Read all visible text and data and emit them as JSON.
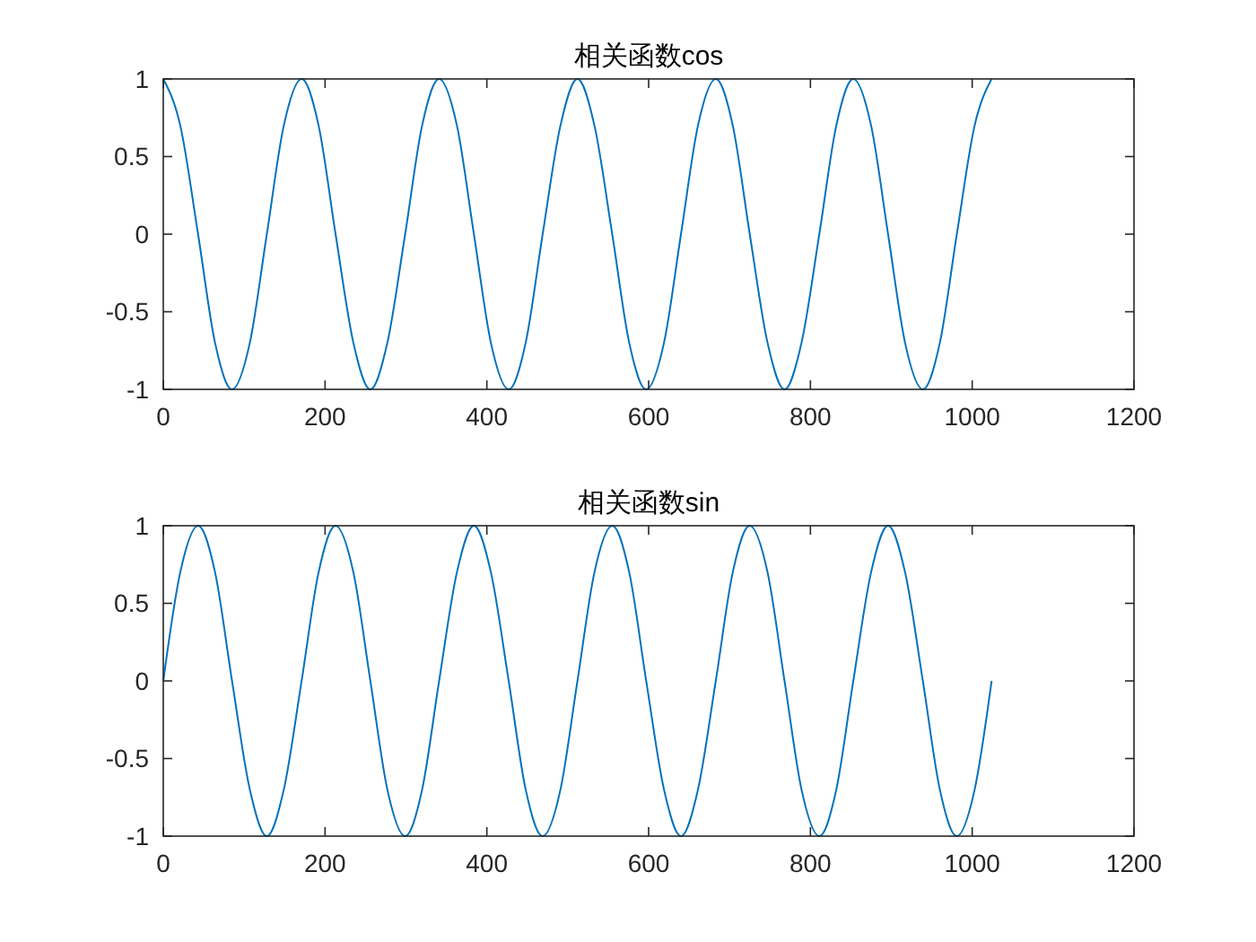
{
  "chart_data": [
    {
      "type": "line",
      "title": "相关函数cos",
      "xlim": [
        0,
        1200
      ],
      "xticks": [
        0,
        200,
        400,
        600,
        800,
        1000,
        1200
      ],
      "ylim": [
        -1,
        1
      ],
      "yticks": [
        -1,
        -0.5,
        0,
        0.5,
        1
      ],
      "series": [
        {
          "color": "#0072bd",
          "x": [
            0,
            21,
            43,
            64,
            85,
            107,
            128,
            149,
            171,
            192,
            213,
            235,
            256,
            277,
            299,
            320,
            341,
            363,
            384,
            405,
            427,
            448,
            469,
            491,
            512,
            533,
            555,
            576,
            597,
            619,
            640,
            661,
            683,
            704,
            725,
            747,
            768,
            789,
            811,
            832,
            853,
            875,
            896,
            917,
            939,
            960,
            981,
            1003,
            1024
          ],
          "values": [
            1,
            0.7,
            0,
            -0.7,
            -1,
            -0.7,
            0,
            0.7,
            1,
            0.7,
            0,
            -0.7,
            -1,
            -0.7,
            0,
            0.7,
            1,
            0.7,
            0,
            -0.7,
            -1,
            -0.7,
            0,
            0.7,
            1,
            0.7,
            0,
            -0.7,
            -1,
            -0.7,
            0,
            0.7,
            1,
            0.7,
            0,
            -0.7,
            -1,
            -0.7,
            0,
            0.7,
            1,
            0.7,
            0,
            -0.7,
            -1,
            -0.7,
            0,
            0.7,
            1
          ]
        }
      ]
    },
    {
      "type": "line",
      "title": "相关函数sin",
      "xlim": [
        0,
        1200
      ],
      "xticks": [
        0,
        200,
        400,
        600,
        800,
        1000,
        1200
      ],
      "ylim": [
        -1,
        1
      ],
      "yticks": [
        -1,
        -0.5,
        0,
        0.5,
        1
      ],
      "series": [
        {
          "color": "#0072bd",
          "x": [
            0,
            21,
            43,
            64,
            85,
            107,
            128,
            149,
            171,
            192,
            213,
            235,
            256,
            277,
            299,
            320,
            341,
            363,
            384,
            405,
            427,
            448,
            469,
            491,
            512,
            533,
            555,
            576,
            597,
            619,
            640,
            661,
            683,
            704,
            725,
            747,
            768,
            789,
            811,
            832,
            853,
            875,
            896,
            917,
            939,
            960,
            981,
            1003,
            1024
          ],
          "values": [
            0,
            0.7,
            1,
            0.7,
            0,
            -0.7,
            -1,
            -0.7,
            0,
            0.7,
            1,
            0.7,
            0,
            -0.7,
            -1,
            -0.7,
            0,
            0.7,
            1,
            0.7,
            0,
            -0.7,
            -1,
            -0.7,
            0,
            0.7,
            1,
            0.7,
            0,
            -0.7,
            -1,
            -0.7,
            0,
            0.7,
            1,
            0.7,
            0,
            -0.7,
            -1,
            -0.7,
            0,
            0.7,
            1,
            0.7,
            0,
            -0.7,
            -1,
            -0.7,
            0
          ]
        }
      ]
    }
  ]
}
